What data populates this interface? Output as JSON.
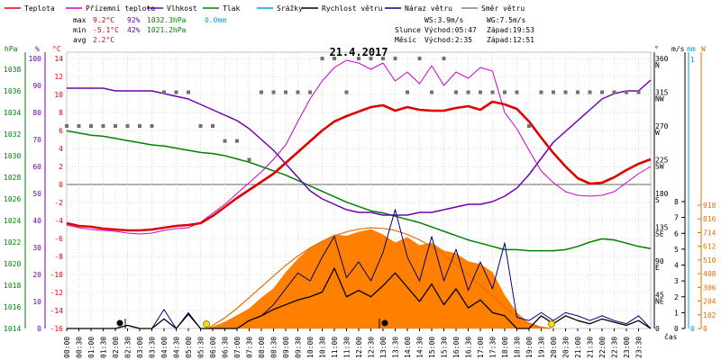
{
  "chart_data": {
    "type": "line",
    "title": "21.4.2017",
    "legend": [
      {
        "name": "Teplota",
        "color": "#e00000"
      },
      {
        "name": "Přízemní teplota",
        "color": "#cc00cc"
      },
      {
        "name": "Vlhkost",
        "color": "#7000b0"
      },
      {
        "name": "Tlak",
        "color": "#008000"
      },
      {
        "name": "Srážky",
        "color": "#00a0d0"
      },
      {
        "name": "Rychlost větru",
        "color": "#000000"
      },
      {
        "name": "Náraz větru",
        "color": "#000080"
      },
      {
        "name": "Směr větru",
        "color": "#808080"
      }
    ],
    "stats": {
      "max_label": "max",
      "max_temp": "9.2°C",
      "max_hum": "92%",
      "max_press": "1032.3hPa",
      "rain": "0.0mm",
      "min_label": "min",
      "min_temp": "-5.1°C",
      "min_hum": "42%",
      "min_press": "1021.2hPa",
      "avg_label": "avg",
      "avg_temp": "2.2°C",
      "ws": "WS:3.9m/s",
      "wg": "WG:7.5m/s",
      "sun_label": "Slunce",
      "sun_rise": "Východ:05:47",
      "sun_set": "Západ:19:53",
      "moon_label": "Měsíc",
      "moon_rise": "Východ:2:35",
      "moon_set": "Západ:12:51"
    },
    "axis_units": {
      "pressure": "hPa",
      "humidity": "%",
      "temperature": "°C",
      "direction": "°",
      "wind": "m/s",
      "rain": "mm",
      "solar": "W"
    },
    "xlabel": "čas",
    "x_ticks": [
      "00:00",
      "00:30",
      "01:00",
      "01:30",
      "02:00",
      "02:30",
      "03:00",
      "03:30",
      "04:00",
      "04:30",
      "05:00",
      "05:30",
      "06:00",
      "06:30",
      "07:00",
      "07:30",
      "08:00",
      "08:30",
      "09:00",
      "09:30",
      "10:00",
      "10:30",
      "11:00",
      "11:30",
      "12:00",
      "12:30",
      "13:00",
      "13:30",
      "14:00",
      "14:30",
      "15:00",
      "15:30",
      "16:00",
      "16:30",
      "17:00",
      "17:30",
      "18:00",
      "18:30",
      "19:00",
      "19:30",
      "20:00",
      "20:30",
      "21:00",
      "21:30",
      "22:00",
      "22:30",
      "23:00",
      "23:30"
    ],
    "temp_ticks": [
      14,
      12,
      10,
      8,
      6,
      4,
      2,
      0,
      -2,
      -4,
      -6,
      -8,
      -10,
      -12,
      -14,
      -16
    ],
    "hum_ticks": [
      100,
      90,
      80,
      70,
      60,
      50,
      40,
      30,
      20,
      10,
      0
    ],
    "press_ticks": [
      1038,
      1036,
      1034,
      1032,
      1030,
      1028,
      1026,
      1024,
      1022,
      1020,
      1018,
      1016,
      1014
    ],
    "dir_ticks": [
      {
        "v": 360,
        "l": "360"
      },
      {
        "v": 360,
        "l": "N"
      },
      {
        "v": 315,
        "l": "315"
      },
      {
        "v": 315,
        "l": "NW"
      },
      {
        "v": 270,
        "l": "270"
      },
      {
        "v": 270,
        "l": "W"
      },
      {
        "v": 225,
        "l": "225"
      },
      {
        "v": 225,
        "l": "SW"
      },
      {
        "v": 180,
        "l": "180"
      },
      {
        "v": 180,
        "l": "S"
      },
      {
        "v": 135,
        "l": "135"
      },
      {
        "v": 135,
        "l": "SE"
      },
      {
        "v": 90,
        "l": "90"
      },
      {
        "v": 90,
        "l": "E"
      },
      {
        "v": 45,
        "l": "45"
      },
      {
        "v": 45,
        "l": "NE"
      },
      {
        "v": 0,
        "l": "0"
      }
    ],
    "wind_ticks": [
      8,
      7,
      6,
      5,
      4,
      3,
      2,
      1,
      0
    ],
    "rain_ticks": [
      1,
      0
    ],
    "solar_ticks": [
      918,
      816,
      714,
      612,
      510,
      408,
      306,
      204,
      102,
      0
    ],
    "ranges": {
      "temp": [
        -16,
        14
      ],
      "hum": [
        0,
        100
      ],
      "press": [
        1014,
        1038
      ],
      "dir": [
        0,
        360
      ],
      "wind": [
        0,
        8
      ],
      "solar": [
        0,
        918
      ]
    },
    "series": {
      "temperature": {
        "x": [
          0,
          0.5,
          1,
          1.5,
          2,
          2.5,
          3,
          3.5,
          4,
          4.5,
          5,
          5.5,
          6,
          6.5,
          7,
          7.5,
          8,
          8.5,
          9,
          9.5,
          10,
          10.5,
          11,
          11.5,
          12,
          12.5,
          13,
          13.5,
          14,
          14.5,
          15,
          15.5,
          16,
          16.5,
          17,
          17.5,
          18,
          18.5,
          19,
          19.5,
          20,
          20.5,
          21,
          21.5,
          22,
          22.5,
          23,
          23.5,
          24
        ],
        "y": [
          -4.3,
          -4.6,
          -4.7,
          -4.9,
          -5,
          -5.1,
          -5.1,
          -5,
          -4.8,
          -4.6,
          -4.5,
          -4.3,
          -3.5,
          -2.5,
          -1.5,
          -0.6,
          0.3,
          1.2,
          2.4,
          3.6,
          4.8,
          6,
          7,
          7.6,
          8.1,
          8.6,
          8.8,
          8.2,
          8.6,
          8.3,
          8.2,
          8.2,
          8.5,
          8.7,
          8.3,
          9.2,
          8.9,
          8.4,
          7,
          5.2,
          3.5,
          2,
          0.7,
          0.1,
          0.2,
          0.8,
          1.6,
          2.3,
          2.8
        ]
      },
      "ground_temperature": {
        "x": [
          0,
          0.5,
          1,
          1.5,
          2,
          2.5,
          3,
          3.5,
          4,
          4.5,
          5,
          5.5,
          6,
          6.5,
          7,
          7.5,
          8,
          8.5,
          9,
          9.5,
          10,
          10.5,
          11,
          11.5,
          12,
          12.5,
          13,
          13.5,
          14,
          14.5,
          15,
          15.5,
          16,
          16.5,
          17,
          17.5,
          18,
          18.5,
          19,
          19.5,
          20,
          20.5,
          21,
          21.5,
          22,
          22.5,
          23,
          23.5,
          24
        ],
        "y": [
          -4.5,
          -4.8,
          -5,
          -5.1,
          -5.2,
          -5.4,
          -5.5,
          -5.4,
          -5.1,
          -4.9,
          -4.8,
          -4.2,
          -3.2,
          -2.2,
          -1,
          0.2,
          1.4,
          2.8,
          4.4,
          7,
          9.5,
          11.5,
          13,
          13.8,
          13.5,
          12.8,
          13.5,
          11.5,
          12.5,
          11.2,
          13.2,
          11,
          12.5,
          11.8,
          13,
          12.6,
          8,
          6.2,
          3.8,
          1.5,
          0.2,
          -0.8,
          -1.2,
          -1.3,
          -1.2,
          -0.8,
          0.2,
          1.2,
          2
        ]
      },
      "humidity": {
        "x": [
          0,
          0.5,
          1,
          1.5,
          2,
          2.5,
          3,
          3.5,
          4,
          4.5,
          5,
          5.5,
          6,
          6.5,
          7,
          7.5,
          8,
          8.5,
          9,
          9.5,
          10,
          10.5,
          11,
          11.5,
          12,
          12.5,
          13,
          13.5,
          14,
          14.5,
          15,
          15.5,
          16,
          16.5,
          17,
          17.5,
          18,
          18.5,
          19,
          19.5,
          20,
          20.5,
          21,
          21.5,
          22,
          22.5,
          23,
          23.5,
          24
        ],
        "y": [
          89,
          89,
          89,
          89,
          88,
          88,
          88,
          88,
          87,
          86,
          85,
          83,
          81,
          79,
          77,
          74,
          70,
          66,
          61,
          56,
          51,
          48,
          46,
          44,
          43,
          43,
          42,
          42,
          42,
          43,
          43,
          44,
          45,
          46,
          46,
          47,
          49,
          52,
          57,
          63,
          69,
          73,
          77,
          81,
          85,
          87,
          88,
          88,
          92
        ]
      },
      "pressure": {
        "x": [
          0,
          0.5,
          1,
          1.5,
          2,
          2.5,
          3,
          3.5,
          4,
          4.5,
          5,
          5.5,
          6,
          6.5,
          7,
          7.5,
          8,
          8.5,
          9,
          9.5,
          10,
          10.5,
          11,
          11.5,
          12,
          12.5,
          13,
          13.5,
          14,
          14.5,
          15,
          15.5,
          16,
          16.5,
          17,
          17.5,
          18,
          18.5,
          19,
          19.5,
          20,
          20.5,
          21,
          21.5,
          22,
          22.5,
          23,
          23.5,
          24
        ],
        "y": [
          1032.3,
          1032.1,
          1031.9,
          1031.8,
          1031.6,
          1031.4,
          1031.2,
          1031,
          1030.9,
          1030.7,
          1030.5,
          1030.3,
          1030.2,
          1030,
          1029.7,
          1029.4,
          1029,
          1028.6,
          1028.2,
          1027.7,
          1027.2,
          1026.7,
          1026.2,
          1025.7,
          1025.3,
          1024.9,
          1024.7,
          1024.4,
          1024.1,
          1023.8,
          1023.4,
          1023,
          1022.6,
          1022.2,
          1021.9,
          1021.6,
          1021.3,
          1021.3,
          1021.2,
          1021.2,
          1021.2,
          1021.3,
          1021.6,
          1022,
          1022.3,
          1022.2,
          1021.9,
          1021.6,
          1021.4
        ]
      },
      "wind_speed": {
        "x": [
          0,
          0.5,
          1,
          1.5,
          2,
          2.5,
          3,
          3.5,
          4,
          4.5,
          5,
          5.5,
          6,
          6.5,
          7,
          7.5,
          8,
          8.5,
          9,
          9.5,
          10,
          10.5,
          11,
          11.5,
          12,
          12.5,
          13,
          13.5,
          14,
          14.5,
          15,
          15.5,
          16,
          16.5,
          17,
          17.5,
          18,
          18.5,
          19,
          19.5,
          20,
          20.5,
          21,
          21.5,
          22,
          22.5,
          23,
          23.5,
          24
        ],
        "y": [
          0,
          0,
          0,
          0,
          0,
          0.2,
          0,
          0,
          0.6,
          0,
          0.9,
          0,
          0,
          0,
          0,
          0.5,
          0.8,
          1.2,
          1.5,
          1.8,
          2,
          2.3,
          3.8,
          2,
          2.4,
          2,
          2.7,
          3.5,
          2.6,
          1.7,
          2.8,
          1.5,
          2.5,
          1.3,
          1.8,
          1,
          0.8,
          0,
          0,
          0.8,
          0.3,
          0.8,
          0.5,
          0.3,
          0.6,
          0.4,
          0.2,
          0.5,
          0
        ]
      },
      "wind_gust": {
        "x": [
          0,
          0.5,
          1,
          1.5,
          2,
          2.5,
          3,
          3.5,
          4,
          4.5,
          5,
          5.5,
          6,
          6.5,
          7,
          7.5,
          8,
          8.5,
          9,
          9.5,
          10,
          10.5,
          11,
          11.5,
          12,
          12.5,
          13,
          13.5,
          14,
          14.5,
          15,
          15.5,
          16,
          16.5,
          17,
          17.5,
          18,
          18.5,
          19,
          19.5,
          20,
          20.5,
          21,
          21.5,
          22,
          22.5,
          23,
          23.5,
          24
        ],
        "y": [
          0,
          0,
          0,
          0,
          0,
          0.2,
          0,
          0,
          1.2,
          0,
          1,
          0,
          0,
          0,
          0,
          0.5,
          0.8,
          1.5,
          2.5,
          3.5,
          3,
          4.5,
          5.8,
          3.2,
          4.2,
          3,
          4.8,
          7.5,
          4.5,
          3,
          5.8,
          3,
          5,
          2.4,
          4.2,
          2.5,
          5.4,
          0.7,
          0.5,
          1,
          0.5,
          1,
          0.8,
          0.5,
          0.8,
          0.5,
          0.3,
          0.8,
          0
        ]
      },
      "solar": {
        "x": [
          5.8,
          6.5,
          7,
          7.5,
          8,
          8.5,
          9,
          9.5,
          10,
          10.5,
          11,
          11.5,
          12,
          12.5,
          13,
          13.5,
          14,
          14.5,
          15,
          15.5,
          16,
          16.5,
          17,
          17.5,
          18,
          18.5,
          19,
          19.5,
          19.9
        ],
        "y": [
          0,
          50,
          100,
          150,
          230,
          300,
          420,
          520,
          600,
          650,
          700,
          690,
          720,
          740,
          700,
          640,
          680,
          620,
          640,
          580,
          560,
          500,
          480,
          420,
          250,
          120,
          40,
          10,
          0
        ]
      },
      "solar_clear_sky": {
        "x": [
          5.8,
          6.5,
          7,
          7.5,
          8,
          8.5,
          9,
          9.5,
          10,
          10.5,
          11,
          11.5,
          12,
          12.5,
          13,
          13.5,
          14,
          14.5,
          15,
          15.5,
          16,
          16.5,
          17,
          17.5,
          18,
          18.5,
          19,
          19.5,
          19.9
        ],
        "y": [
          0,
          80,
          150,
          230,
          310,
          390,
          470,
          540,
          600,
          650,
          690,
          720,
          740,
          750,
          745,
          730,
          700,
          660,
          610,
          550,
          480,
          400,
          320,
          240,
          160,
          90,
          40,
          10,
          0
        ]
      },
      "wind_direction": {
        "x": [
          0,
          0.5,
          1,
          1.5,
          2,
          2.5,
          3,
          3.5,
          4,
          4.5,
          5,
          5.5,
          6,
          6.5,
          7,
          7.5,
          8,
          8.5,
          9,
          9.5,
          10,
          10.5,
          11,
          11.5,
          12,
          12.5,
          13,
          13.5,
          14,
          14.5,
          15,
          15.5,
          16,
          16.5,
          17,
          17.5,
          18,
          18.5,
          19,
          19.5,
          20,
          20.5,
          21,
          21.5,
          22,
          22.5,
          23,
          23.5
        ],
        "y": [
          270,
          270,
          270,
          270,
          270,
          270,
          270,
          270,
          315,
          315,
          315,
          270,
          270,
          250,
          250,
          225,
          315,
          315,
          315,
          315,
          315,
          360,
          360,
          315,
          360,
          360,
          360,
          360,
          315,
          360,
          315,
          360,
          315,
          315,
          315,
          315,
          315,
          315,
          270,
          315,
          315,
          315,
          315,
          315,
          315,
          315,
          315,
          315
        ]
      }
    }
  }
}
